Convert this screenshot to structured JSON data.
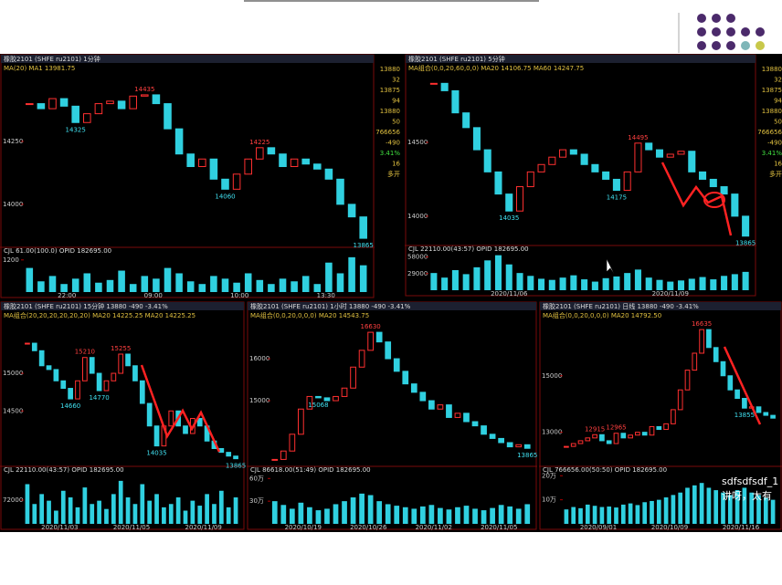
{
  "panels": [
    {
      "title": "橡胶2101 (SHFE ru2101)  1分钟",
      "ma": "MA(20)  MA1 13981.75",
      "ylim": [
        13840,
        14500
      ],
      "yticks": [
        14250,
        14000
      ],
      "prices": [
        14400,
        14380,
        14420,
        14390,
        14325,
        14360,
        14400,
        14410,
        14380,
        14430,
        14435,
        14400,
        14300,
        14200,
        14150,
        14180,
        14100,
        14060,
        14120,
        14180,
        14225,
        14200,
        14150,
        14180,
        14160,
        14140,
        14100,
        14000,
        13950,
        13865
      ],
      "annotations": [
        "14435",
        "14325",
        "14225",
        "14060",
        "13865"
      ],
      "volume_label": "CJL 61.00(100.0) OPID 182695.00",
      "vlim": [
        0,
        1500
      ],
      "vticks": [
        1200
      ],
      "volumes": [
        900,
        400,
        600,
        300,
        500,
        700,
        350,
        450,
        800,
        300,
        600,
        500,
        900,
        700,
        400,
        300,
        600,
        500,
        350,
        700,
        450,
        300,
        500,
        400,
        600,
        300,
        1100,
        700,
        1300,
        1000
      ],
      "xlabels": [
        "22:00",
        "09:00",
        "10:00",
        "13:30"
      ],
      "side": [
        "13880",
        "32",
        "13875",
        "94",
        "13880",
        "50",
        "766656",
        "-490",
        "3.41%",
        "16",
        "多开"
      ]
    },
    {
      "title": "橡胶2101 (SHFE ru2101)  5分钟",
      "ma": "MA组合(0,0,20,60,0,0)  MA20 14106.75  MA60 14247.75",
      "ylim": [
        13820,
        14970
      ],
      "yticks": [
        14500,
        14000
      ],
      "prices": [
        14900,
        14850,
        14700,
        14600,
        14450,
        14300,
        14150,
        14035,
        14200,
        14300,
        14350,
        14400,
        14450,
        14420,
        14350,
        14300,
        14250,
        14175,
        14300,
        14495,
        14450,
        14400,
        14420,
        14440,
        14300,
        14250,
        14200,
        14150,
        14000,
        13865
      ],
      "annotations": [
        "14495",
        "14035",
        "14175",
        "13865"
      ],
      "volume_label": "CJL 22110.00(43:57) OPID 182695.00",
      "vlim": [
        0,
        70000
      ],
      "vticks": [
        58000,
        29000
      ],
      "volumes": [
        30000,
        22000,
        35000,
        28000,
        40000,
        52000,
        61000,
        45000,
        30000,
        25000,
        20000,
        18000,
        22000,
        26000,
        19000,
        15000,
        21000,
        24000,
        30000,
        36000,
        22000,
        18000,
        15000,
        17000,
        20000,
        23000,
        19000,
        25000,
        28000,
        32000
      ],
      "xlabels": [
        "2020/11/06",
        "2020/11/09"
      ],
      "side": [
        "13880",
        "32",
        "13875",
        "94",
        "13880",
        "50",
        "766656",
        "-490",
        "3.41%",
        "16",
        "多开"
      ]
    },
    {
      "title": "橡胶2101 (SHFE ru2101)  15分钟  13880  -490  -3.41%",
      "ma": "MA组合(20,20,20,20,20,20)  MA20 14225.25  MA20 14225.25",
      "ylim": [
        13800,
        15740
      ],
      "yticks": [
        15000,
        14500
      ],
      "prices": [
        15400,
        15300,
        15100,
        15050,
        14900,
        14800,
        14660,
        14900,
        15210,
        15000,
        14770,
        14900,
        15000,
        15255,
        15100,
        14900,
        14600,
        14300,
        14035,
        14300,
        14500,
        14300,
        14200,
        14400,
        14300,
        14100,
        14000,
        13950,
        13900,
        13865
      ],
      "annotations": [
        "15210",
        "15255",
        "14660",
        "14770",
        "14035",
        "13865"
      ],
      "volume_label": "CJL 22110.00(43:57) OPID 182695.00",
      "vlim": [
        0,
        160000
      ],
      "vticks": [
        72000
      ],
      "volumes": [
        120000,
        60000,
        90000,
        70000,
        40000,
        100000,
        80000,
        50000,
        110000,
        60000,
        70000,
        45000,
        90000,
        130000,
        80000,
        60000,
        120000,
        70000,
        90000,
        50000,
        60000,
        80000,
        40000,
        70000,
        55000,
        90000,
        60000,
        100000,
        50000,
        80000
      ],
      "xlabels": [
        "2020/11/03",
        "2020/11/05",
        "2020/11/09"
      ]
    },
    {
      "title": "橡胶2101 (SHFE ru2101)  1小时  13880  -490  -3.41%",
      "ma": "MA组合(0,0,20,0,0,0)  MA20 14543.75",
      "ylim": [
        13500,
        16980
      ],
      "yticks": [
        16000,
        15000
      ],
      "prices": [
        13600,
        13800,
        14200,
        14800,
        15100,
        15068,
        15000,
        15100,
        15300,
        15800,
        16200,
        16630,
        16400,
        16000,
        15700,
        15400,
        15200,
        15000,
        14800,
        14900,
        14600,
        14700,
        14500,
        14400,
        14200,
        14100,
        14000,
        13900,
        13950,
        13865
      ],
      "annotations": [
        "16630",
        "15068",
        "13865"
      ],
      "volume_label": "CJL 86618.00(51:49) OPID 182695.00",
      "vlim": [
        0,
        700000
      ],
      "vticks": [
        {
          "value": 600000,
          "label": "60万"
        },
        {
          "value": 300000,
          "label": "30万"
        }
      ],
      "volumes": [
        300000,
        250000,
        200000,
        280000,
        220000,
        180000,
        200000,
        260000,
        300000,
        350000,
        400000,
        380000,
        300000,
        260000,
        240000,
        220000,
        200000,
        230000,
        250000,
        210000,
        190000,
        220000,
        240000,
        200000,
        180000,
        210000,
        250000,
        230000,
        200000,
        260000
      ],
      "xlabels": [
        "2020/10/19",
        "2020/10/26",
        "2020/11/02",
        "2020/11/05"
      ]
    },
    {
      "title": "橡胶2101 (SHFE ru2101)  日线  13880  -490  -3.41%",
      "ma": "MA组合(0,0,20,0,0,0)  MA20 14792.50",
      "ylim": [
        11890,
        17060
      ],
      "yticks": [
        15000,
        13000
      ],
      "prices": [
        12500,
        12600,
        12700,
        12800,
        12915,
        12700,
        12600,
        12965,
        12800,
        12900,
        13000,
        12900,
        13200,
        13100,
        13300,
        13800,
        14500,
        15200,
        15800,
        16635,
        16000,
        15500,
        15000,
        14500,
        14200,
        13855,
        13900,
        13700,
        13600,
        13500
      ],
      "annotations": [
        "16635",
        "12915",
        "12965",
        "13855"
      ],
      "volume_label": "CJL 766656.00(50:50) OPID 182695.00",
      "vlim": [
        0,
        220000
      ],
      "vticks": [
        {
          "value": 200000,
          "label": "20万"
        },
        {
          "value": 100000,
          "label": "10万"
        }
      ],
      "volumes": [
        60000,
        70000,
        65000,
        80000,
        75000,
        70000,
        72000,
        68000,
        80000,
        85000,
        78000,
        90000,
        95000,
        100000,
        110000,
        120000,
        130000,
        150000,
        160000,
        170000,
        150000,
        140000,
        130000,
        120000,
        140000,
        150000,
        130000,
        120000,
        110000,
        100000
      ],
      "xlabels": [
        "2020/09/01",
        "2020/10/09",
        "2020/11/16"
      ]
    }
  ],
  "overlay": [
    "sdfsdfsdf_1",
    "讲呀，太有"
  ]
}
